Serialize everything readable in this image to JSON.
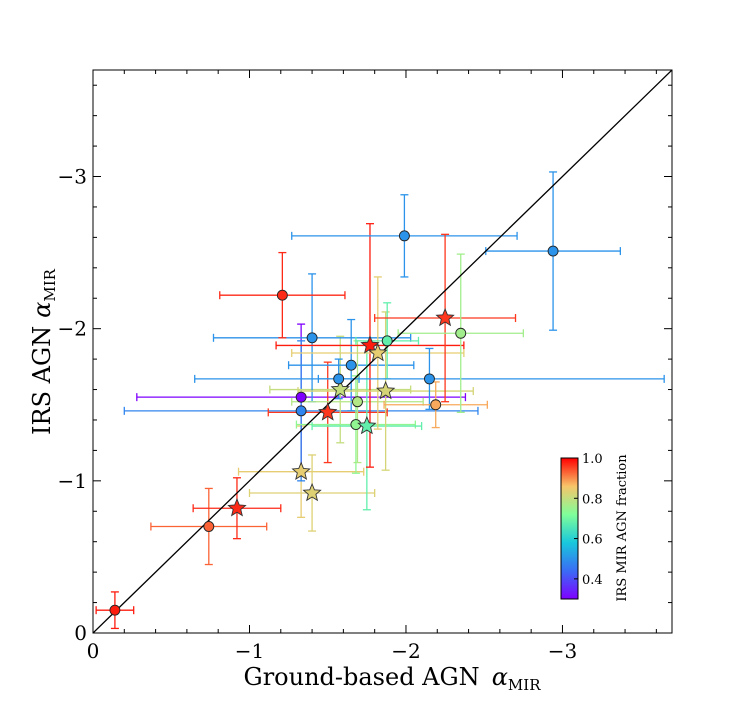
{
  "chart_data": {
    "type": "scatter",
    "title": "",
    "xlabel": "Ground-based AGN",
    "xlabel_symbol": "α",
    "xlabel_subscript": "MIR",
    "ylabel": "IRS AGN",
    "ylabel_symbol": "α",
    "ylabel_subscript": "MIR",
    "xlim": [
      0,
      -3.7
    ],
    "ylim": [
      0,
      -3.7
    ],
    "xticks": [
      {
        "value": 0,
        "label": "0"
      },
      {
        "value": -1,
        "label": "−1"
      },
      {
        "value": -2,
        "label": "−2"
      },
      {
        "value": -3,
        "label": "−3"
      }
    ],
    "yticks": [
      {
        "value": 0,
        "label": "0"
      },
      {
        "value": -1,
        "label": "−1"
      },
      {
        "value": -2,
        "label": "−2"
      },
      {
        "value": -3,
        "label": "−3"
      }
    ],
    "reference_line": "one-to-one",
    "colorbar": {
      "label": "IRS MIR AGN fraction",
      "range": [
        0.3,
        1.0
      ],
      "ticks": [
        {
          "value": 0.4,
          "label": "0.4"
        },
        {
          "value": 0.6,
          "label": "0.6"
        },
        {
          "value": 0.8,
          "label": "0.8"
        },
        {
          "value": 1.0,
          "label": "1.0"
        }
      ]
    },
    "points": [
      {
        "x": -0.14,
        "y": -0.15,
        "xerr": 0.12,
        "yerr": 0.12,
        "marker": "circle",
        "frac": 0.98
      },
      {
        "x": -0.74,
        "y": -0.7,
        "xerr": 0.37,
        "yerr": 0.25,
        "marker": "circle",
        "frac": 0.93
      },
      {
        "x": -0.92,
        "y": -0.82,
        "xerr": 0.28,
        "yerr": 0.2,
        "marker": "star",
        "frac": 0.97
      },
      {
        "x": -1.33,
        "y": -1.06,
        "xerr": 0.4,
        "yerr": 0.3,
        "marker": "star",
        "frac": 0.84
      },
      {
        "x": -1.4,
        "y": -0.92,
        "xerr": 0.4,
        "yerr": 0.25,
        "marker": "star",
        "frac": 0.83
      },
      {
        "x": -1.33,
        "y": -1.55,
        "xerr": 1.05,
        "yerr": 0.48,
        "marker": "circle",
        "frac": 0.3
      },
      {
        "x": -1.33,
        "y": -1.46,
        "xerr": 1.13,
        "yerr": 0.46,
        "marker": "circle",
        "frac": 0.48
      },
      {
        "x": -1.5,
        "y": -1.45,
        "xerr": 0.38,
        "yerr": 0.33,
        "marker": "star",
        "frac": 0.96
      },
      {
        "x": -1.58,
        "y": -1.6,
        "xerr": 0.45,
        "yerr": 0.35,
        "marker": "star",
        "frac": 0.8
      },
      {
        "x": -1.57,
        "y": -1.67,
        "xerr": 0.13,
        "yerr": 0.13,
        "marker": "circle",
        "frac": 0.5
      },
      {
        "x": -1.4,
        "y": -1.94,
        "xerr": 0.63,
        "yerr": 0.42,
        "marker": "circle",
        "frac": 0.5
      },
      {
        "x": -1.65,
        "y": -1.76,
        "xerr": 0.4,
        "yerr": 0.3,
        "marker": "circle",
        "frac": 0.5
      },
      {
        "x": -1.21,
        "y": -2.22,
        "xerr": 0.4,
        "yerr": 0.28,
        "marker": "circle",
        "frac": 0.97
      },
      {
        "x": -1.69,
        "y": -1.52,
        "xerr": 0.42,
        "yerr": 0.4,
        "marker": "circle",
        "frac": 0.78
      },
      {
        "x": -1.68,
        "y": -1.37,
        "xerr": 0.38,
        "yerr": 0.32,
        "marker": "circle",
        "frac": 0.74
      },
      {
        "x": -1.75,
        "y": -1.36,
        "xerr": 0.35,
        "yerr": 0.55,
        "marker": "star",
        "frac": 0.68
      },
      {
        "x": -1.77,
        "y": -1.89,
        "xerr": 0.6,
        "yerr": 0.8,
        "marker": "star",
        "frac": 0.98
      },
      {
        "x": -1.82,
        "y": -1.84,
        "xerr": 0.55,
        "yerr": 0.5,
        "marker": "star",
        "frac": 0.84
      },
      {
        "x": -1.87,
        "y": -1.59,
        "xerr": 0.56,
        "yerr": 0.52,
        "marker": "star",
        "frac": 0.82
      },
      {
        "x": -1.88,
        "y": -1.92,
        "xerr": 0.2,
        "yerr": 0.25,
        "marker": "circle",
        "frac": 0.68
      },
      {
        "x": -1.99,
        "y": -2.61,
        "xerr": 0.72,
        "yerr": 0.27,
        "marker": "circle",
        "frac": 0.5
      },
      {
        "x": -2.15,
        "y": -1.67,
        "xerr": 1.5,
        "yerr": 0.2,
        "marker": "circle",
        "frac": 0.5
      },
      {
        "x": -2.19,
        "y": -1.5,
        "xerr": 0.33,
        "yerr": 0.15,
        "marker": "circle",
        "frac": 0.88
      },
      {
        "x": -2.25,
        "y": -2.07,
        "xerr": 0.45,
        "yerr": 0.55,
        "marker": "star",
        "frac": 0.96
      },
      {
        "x": -2.35,
        "y": -1.97,
        "xerr": 0.4,
        "yerr": 0.52,
        "marker": "circle",
        "frac": 0.76
      },
      {
        "x": -2.94,
        "y": -2.51,
        "xerr": 0.43,
        "yerr": 0.52,
        "marker": "circle",
        "frac": 0.5
      }
    ]
  }
}
